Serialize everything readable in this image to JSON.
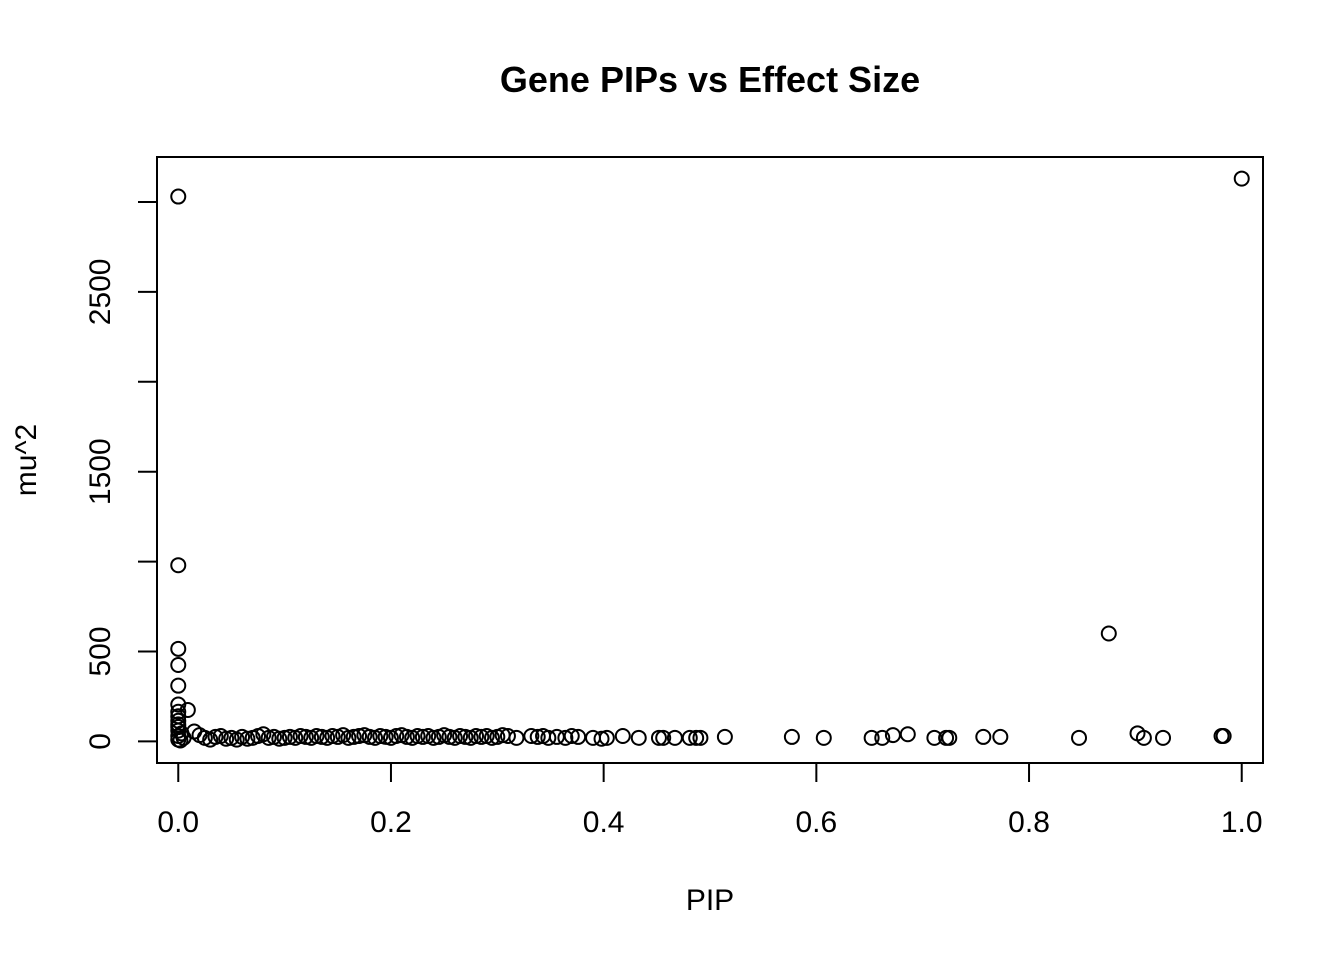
{
  "chart_data": {
    "type": "scatter",
    "title": "Gene PIPs vs Effect Size",
    "xlabel": "PIP",
    "ylabel": "mu^2",
    "xlim": [
      -0.02,
      1.02
    ],
    "ylim": [
      -120,
      3250
    ],
    "x_ticks": [
      0.0,
      0.2,
      0.4,
      0.6,
      0.8,
      1.0
    ],
    "x_tick_labels": [
      "0.0",
      "0.2",
      "0.4",
      "0.6",
      "0.8",
      "1.0"
    ],
    "y_ticks": [
      0,
      500,
      1000,
      1500,
      2000,
      2500,
      3000
    ],
    "y_tick_labels": [
      "0",
      "500",
      "",
      "1500",
      "",
      "2500",
      ""
    ],
    "grid": false,
    "legend": "none",
    "series": [
      {
        "marker": "open-circle",
        "color": "#000000",
        "points": [
          [
            1.0,
            3130
          ],
          [
            0.0,
            3030
          ],
          [
            0.0,
            980
          ],
          [
            0.875,
            600
          ],
          [
            0.0,
            515
          ],
          [
            0.0,
            425
          ],
          [
            0.0,
            310
          ],
          [
            0.0,
            205
          ],
          [
            0.009,
            175
          ],
          [
            0.0,
            165
          ],
          [
            0.0,
            140
          ],
          [
            0.0,
            115
          ],
          [
            0.0,
            95
          ],
          [
            0.0,
            80
          ],
          [
            0.0,
            60
          ],
          [
            0.003,
            45
          ],
          [
            0.0,
            30
          ],
          [
            0.005,
            20
          ],
          [
            0.0,
            10
          ],
          [
            0.002,
            5
          ],
          [
            0.015,
            55
          ],
          [
            0.02,
            35
          ],
          [
            0.025,
            20
          ],
          [
            0.03,
            10
          ],
          [
            0.035,
            25
          ],
          [
            0.04,
            30
          ],
          [
            0.045,
            15
          ],
          [
            0.05,
            20
          ],
          [
            0.055,
            10
          ],
          [
            0.06,
            25
          ],
          [
            0.065,
            15
          ],
          [
            0.07,
            20
          ],
          [
            0.075,
            30
          ],
          [
            0.08,
            40
          ],
          [
            0.085,
            20
          ],
          [
            0.09,
            25
          ],
          [
            0.095,
            15
          ],
          [
            0.1,
            20
          ],
          [
            0.105,
            25
          ],
          [
            0.11,
            20
          ],
          [
            0.115,
            30
          ],
          [
            0.12,
            25
          ],
          [
            0.125,
            20
          ],
          [
            0.13,
            30
          ],
          [
            0.135,
            25
          ],
          [
            0.14,
            20
          ],
          [
            0.145,
            30
          ],
          [
            0.15,
            25
          ],
          [
            0.155,
            35
          ],
          [
            0.16,
            20
          ],
          [
            0.165,
            25
          ],
          [
            0.17,
            30
          ],
          [
            0.175,
            35
          ],
          [
            0.18,
            25
          ],
          [
            0.185,
            20
          ],
          [
            0.19,
            30
          ],
          [
            0.195,
            25
          ],
          [
            0.2,
            20
          ],
          [
            0.205,
            30
          ],
          [
            0.21,
            35
          ],
          [
            0.215,
            25
          ],
          [
            0.22,
            20
          ],
          [
            0.225,
            30
          ],
          [
            0.23,
            25
          ],
          [
            0.235,
            30
          ],
          [
            0.24,
            20
          ],
          [
            0.245,
            25
          ],
          [
            0.25,
            35
          ],
          [
            0.255,
            25
          ],
          [
            0.26,
            20
          ],
          [
            0.265,
            30
          ],
          [
            0.27,
            25
          ],
          [
            0.275,
            20
          ],
          [
            0.28,
            30
          ],
          [
            0.285,
            25
          ],
          [
            0.29,
            30
          ],
          [
            0.295,
            20
          ],
          [
            0.3,
            25
          ],
          [
            0.305,
            35
          ],
          [
            0.31,
            30
          ],
          [
            0.318,
            20
          ],
          [
            0.332,
            30
          ],
          [
            0.338,
            25
          ],
          [
            0.343,
            30
          ],
          [
            0.348,
            20
          ],
          [
            0.356,
            25
          ],
          [
            0.364,
            20
          ],
          [
            0.37,
            30
          ],
          [
            0.376,
            25
          ],
          [
            0.39,
            20
          ],
          [
            0.398,
            15
          ],
          [
            0.403,
            20
          ],
          [
            0.418,
            30
          ],
          [
            0.433,
            20
          ],
          [
            0.452,
            20
          ],
          [
            0.456,
            20
          ],
          [
            0.467,
            20
          ],
          [
            0.481,
            20
          ],
          [
            0.487,
            20
          ],
          [
            0.491,
            20
          ],
          [
            0.514,
            25
          ],
          [
            0.577,
            25
          ],
          [
            0.607,
            20
          ],
          [
            0.652,
            20
          ],
          [
            0.662,
            20
          ],
          [
            0.672,
            35
          ],
          [
            0.686,
            40
          ],
          [
            0.711,
            20
          ],
          [
            0.722,
            20
          ],
          [
            0.725,
            20
          ],
          [
            0.757,
            25
          ],
          [
            0.773,
            25
          ],
          [
            0.847,
            20
          ],
          [
            0.902,
            45
          ],
          [
            0.908,
            20
          ],
          [
            0.926,
            20
          ],
          [
            0.981,
            30
          ],
          [
            0.983,
            30
          ]
        ]
      }
    ]
  }
}
